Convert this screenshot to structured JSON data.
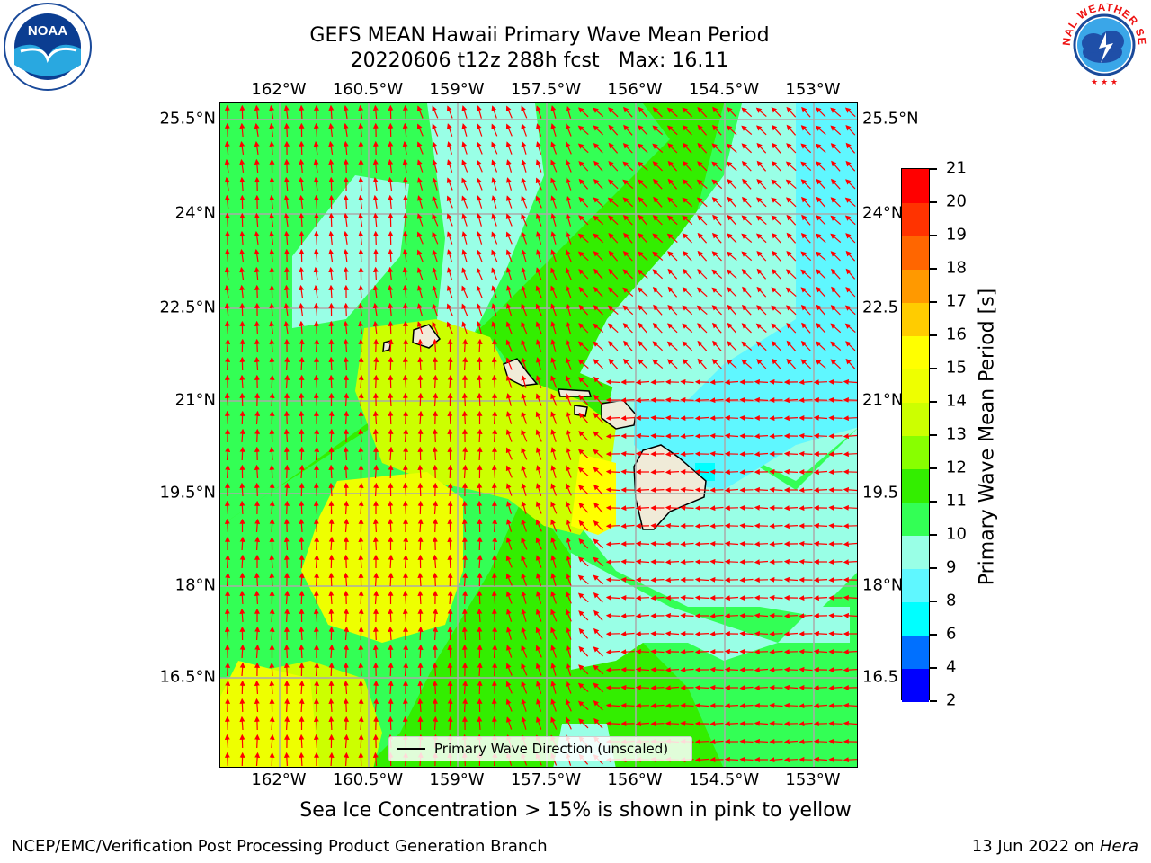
{
  "title": {
    "line1": "GEFS MEAN Hawaii Primary Wave Mean Period",
    "line2": "20220606 t12z 288h fcst   Max: 16.11"
  },
  "axes": {
    "lon_labels": [
      "162°W",
      "160.5°W",
      "159°W",
      "157.5°W",
      "156°W",
      "154.5°W",
      "153°W"
    ],
    "lat_labels": [
      "25.5°N",
      "24°N",
      "22.5°N",
      "21°N",
      "19.5°N",
      "18°N",
      "16.5°N"
    ],
    "lat_labels_right": [
      "25.5°N",
      "24°N",
      "22.5",
      "21°N",
      "19.5",
      "18°N",
      "16.5"
    ]
  },
  "colorbar": {
    "title": "Primary Wave Mean Period [s]",
    "ticks": [
      "2",
      "4",
      "6",
      "8",
      "9",
      "10",
      "11",
      "12",
      "13",
      "14",
      "15",
      "16",
      "17",
      "18",
      "19",
      "20",
      "21"
    ],
    "colors": [
      "#0000ff",
      "#0070ff",
      "#00ffff",
      "#5ff7ff",
      "#99ffe6",
      "#33ff55",
      "#33ee00",
      "#88ff00",
      "#ccff00",
      "#eeff00",
      "#ffff00",
      "#ffcc00",
      "#ff9900",
      "#ff6600",
      "#ff3300",
      "#ff0000"
    ]
  },
  "legend": {
    "label": "Primary Wave Direction (unscaled)"
  },
  "note": "Sea Ice Concentration > 15% is shown in pink to yellow",
  "footer": {
    "left": "NCEP/EMC/Verification Post Processing Product Generation Branch",
    "right_prefix": "13 Jun 2022 on ",
    "right_host": "Hera"
  },
  "logos": {
    "left": "NOAA",
    "right": "NATIONAL WEATHER SERVICE"
  },
  "arrow_color": "#ff0000"
}
